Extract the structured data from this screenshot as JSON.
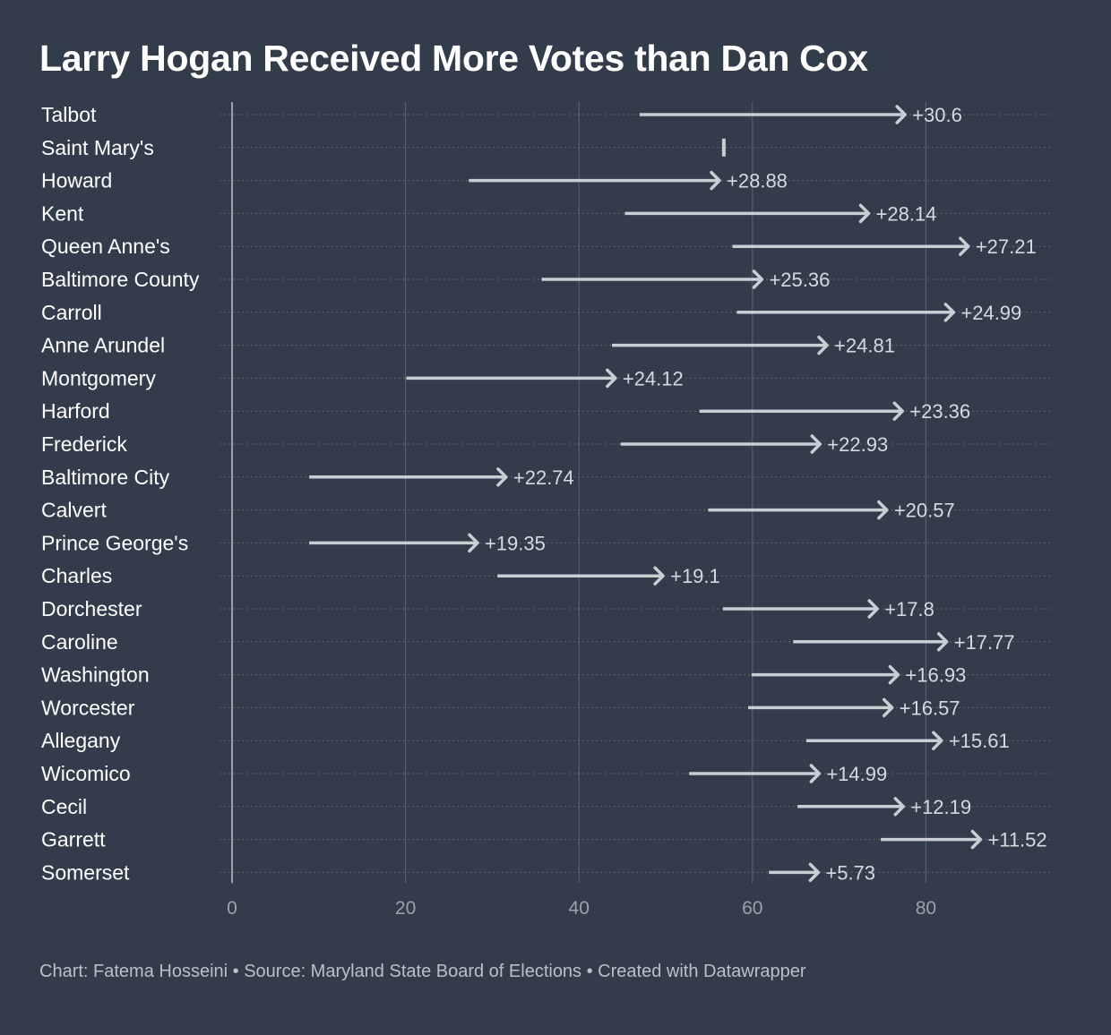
{
  "title": "Larry Hogan Received More Votes than Dan Cox",
  "footer": "Chart: Fatema Hosseini • Source: Maryland State Board of Elections • Created with Datawrapper",
  "colors": {
    "background": "#323c4b",
    "arrow": "#c9ced3",
    "grid": "#56606d",
    "zero_line": "#9aa3ad"
  },
  "chart_data": {
    "type": "arrow-range",
    "title": "Larry Hogan Received More Votes than Dan Cox",
    "xlabel": "",
    "ylabel": "",
    "xlim": [
      0,
      95
    ],
    "x_ticks": [
      0,
      20,
      40,
      60,
      80
    ],
    "grid": true,
    "legend": "none",
    "series": [
      {
        "category": "Talbot",
        "from": 47.0,
        "to": 77.6,
        "label": "+30.6"
      },
      {
        "category": "Saint Mary's",
        "from": 56.7,
        "to": 56.7,
        "label": ""
      },
      {
        "category": "Howard",
        "from": 27.3,
        "to": 56.2,
        "label": "+28.88"
      },
      {
        "category": "Kent",
        "from": 45.3,
        "to": 73.4,
        "label": "+28.14"
      },
      {
        "category": "Queen Anne's",
        "from": 57.7,
        "to": 84.9,
        "label": "+27.21"
      },
      {
        "category": "Baltimore County",
        "from": 35.7,
        "to": 61.1,
        "label": "+25.36"
      },
      {
        "category": "Carroll",
        "from": 58.2,
        "to": 83.2,
        "label": "+24.99"
      },
      {
        "category": "Anne Arundel",
        "from": 43.8,
        "to": 68.6,
        "label": "+24.81"
      },
      {
        "category": "Montgomery",
        "from": 20.1,
        "to": 44.2,
        "label": "+24.12"
      },
      {
        "category": "Harford",
        "from": 53.9,
        "to": 77.3,
        "label": "+23.36"
      },
      {
        "category": "Frederick",
        "from": 44.8,
        "to": 67.8,
        "label": "+22.93"
      },
      {
        "category": "Baltimore City",
        "from": 8.9,
        "to": 31.6,
        "label": "+22.74"
      },
      {
        "category": "Calvert",
        "from": 54.9,
        "to": 75.5,
        "label": "+20.57"
      },
      {
        "category": "Prince George's",
        "from": 8.9,
        "to": 28.3,
        "label": "+19.35"
      },
      {
        "category": "Charles",
        "from": 30.6,
        "to": 49.7,
        "label": "+19.1"
      },
      {
        "category": "Dorchester",
        "from": 56.6,
        "to": 74.4,
        "label": "+17.8"
      },
      {
        "category": "Caroline",
        "from": 64.7,
        "to": 82.4,
        "label": "+17.77"
      },
      {
        "category": "Washington",
        "from": 59.9,
        "to": 76.8,
        "label": "+16.93"
      },
      {
        "category": "Worcester",
        "from": 59.5,
        "to": 76.1,
        "label": "+16.57"
      },
      {
        "category": "Allegany",
        "from": 66.2,
        "to": 81.8,
        "label": "+15.61"
      },
      {
        "category": "Wicomico",
        "from": 52.7,
        "to": 67.7,
        "label": "+14.99"
      },
      {
        "category": "Cecil",
        "from": 65.2,
        "to": 77.4,
        "label": "+12.19"
      },
      {
        "category": "Garrett",
        "from": 74.8,
        "to": 86.3,
        "label": "+11.52"
      },
      {
        "category": "Somerset",
        "from": 61.9,
        "to": 67.6,
        "label": "+5.73"
      }
    ]
  }
}
